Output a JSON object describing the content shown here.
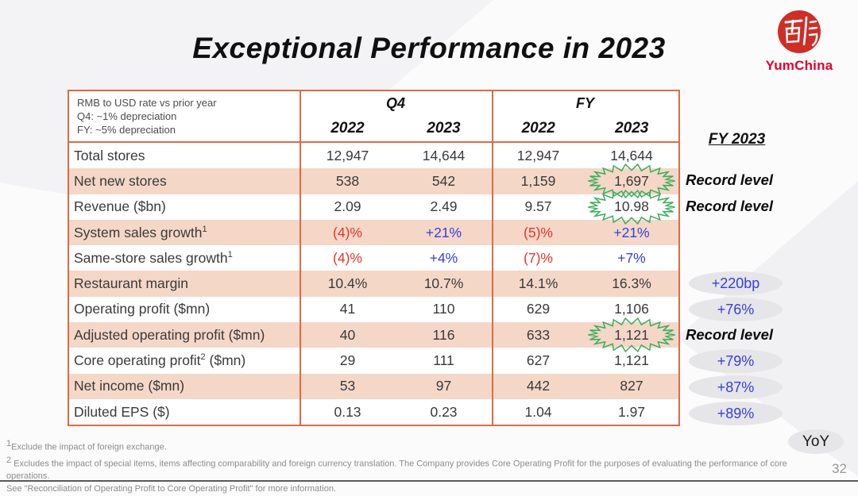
{
  "slide": {
    "title": "Exceptional Performance in 2023",
    "page_number": "32",
    "yoy_label": "YoY"
  },
  "logo": {
    "brand": "YumChina"
  },
  "table": {
    "note": {
      "line1": "RMB to USD rate vs prior year",
      "line2": "Q4: ~1% depreciation",
      "line3": "FY: ~5% depreciation"
    },
    "groups": {
      "q4": "Q4",
      "fy": "FY"
    },
    "years": {
      "q4_2022": "2022",
      "q4_2023": "2023",
      "fy_2022": "2022",
      "fy_2023": "2023"
    },
    "rows": [
      {
        "label": "Total stores",
        "q4_2022": "12,947",
        "q4_2023": "14,644",
        "fy_2022": "12,947",
        "fy_2023": "14,644"
      },
      {
        "label": "Net new stores",
        "q4_2022": "538",
        "q4_2023": "542",
        "fy_2022": "1,159",
        "fy_2023": "1,697"
      },
      {
        "label": "Revenue ($bn)",
        "q4_2022": "2.09",
        "q4_2023": "2.49",
        "fy_2022": "9.57",
        "fy_2023": "10.98"
      },
      {
        "label": "System sales growth",
        "sup": "1",
        "q4_2022": "(4)%",
        "q4_2023": "+21%",
        "fy_2022": "(5)%",
        "fy_2023": "+21%"
      },
      {
        "label": "Same-store sales growth",
        "sup": "1",
        "q4_2022": "(4)%",
        "q4_2023": "+4%",
        "fy_2022": "(7)%",
        "fy_2023": "+7%"
      },
      {
        "label": "Restaurant margin",
        "q4_2022": "10.4%",
        "q4_2023": "10.7%",
        "fy_2022": "14.1%",
        "fy_2023": "16.3%"
      },
      {
        "label": "Operating profit ($mn)",
        "q4_2022": "41",
        "q4_2023": "110",
        "fy_2022": "629",
        "fy_2023": "1,106"
      },
      {
        "label": "Adjusted operating profit ($mn)",
        "q4_2022": "40",
        "q4_2023": "116",
        "fy_2022": "633",
        "fy_2023": "1,121"
      },
      {
        "label": "Core operating profit",
        "sup": "2",
        "label_suffix": " ($mn)",
        "q4_2022": "29",
        "q4_2023": "111",
        "fy_2022": "627",
        "fy_2023": "1,121"
      },
      {
        "label": "Net income ($mn)",
        "q4_2022": "53",
        "q4_2023": "97",
        "fy_2022": "442",
        "fy_2023": "827"
      },
      {
        "label": "Diluted EPS ($)",
        "q4_2022": "0.13",
        "q4_2023": "0.23",
        "fy_2022": "1.04",
        "fy_2023": "1.97"
      }
    ]
  },
  "annotations": {
    "header": "FY 2023",
    "items": [
      {
        "text": "Record level"
      },
      {
        "text": "Record level"
      },
      {
        "text": "+220bp"
      },
      {
        "text": "+76%"
      },
      {
        "text": "Record level"
      },
      {
        "text": "+79%"
      },
      {
        "text": "+87%"
      },
      {
        "text": "+89%"
      }
    ]
  },
  "footnotes": {
    "sup1": "1",
    "note1": "Exclude the impact of foreign exchange.",
    "sup2": "2",
    "note2": " Excludes the impact of special items, items affecting comparability and foreign currency translation.  The Company provides Core Operating Profit for the purposes of evaluating the performance of core operations.",
    "note3": "See \"Reconciliation of Operating Profit to Core Operating Profit\" for more information."
  },
  "colors": {
    "table_border_orange": "#DD6B44",
    "row_stripe_peach": "#F5D7C8",
    "negative_red": "#E8342C",
    "positive_blue": "#3640DD",
    "highlight_green": "#3FAE5E",
    "brand_red": "#E4002B",
    "pill_grey": "#E6E5E8"
  }
}
